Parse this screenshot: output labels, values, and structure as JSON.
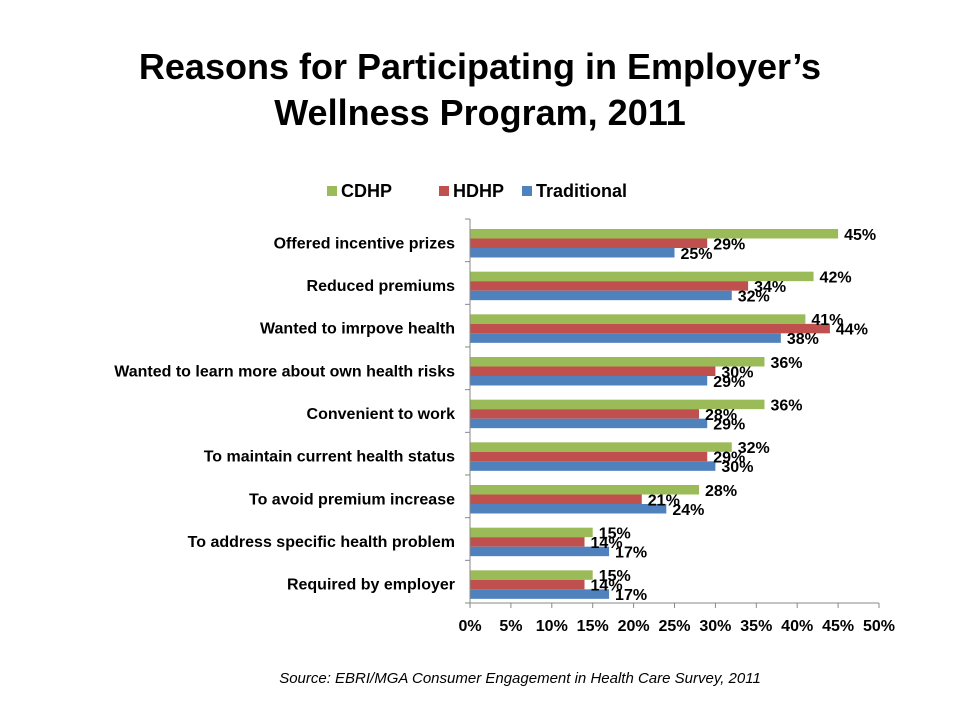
{
  "title_line1": "Reasons for Participating in Employer’s",
  "title_line2": "Wellness Program, 2011",
  "source": "Source: EBRI/MGA Consumer Engagement in Health Care Survey, 2011",
  "chart_data": {
    "type": "bar",
    "orientation": "horizontal",
    "title": "Reasons for Participating in Employer’s Wellness Program, 2011",
    "categories": [
      "Offered incentive prizes",
      "Reduced premiums",
      "Wanted to imrpove health",
      "Wanted to learn more about own health risks",
      "Convenient to work",
      "To maintain current health status",
      "To avoid premium increase",
      "To address specific health problem",
      "Required by employer"
    ],
    "series": [
      {
        "name": "CDHP",
        "color": "#9BBB59",
        "values": [
          45,
          42,
          41,
          36,
          36,
          32,
          28,
          15,
          15
        ]
      },
      {
        "name": "HDHP",
        "color": "#C0504D",
        "values": [
          29,
          34,
          44,
          30,
          28,
          29,
          21,
          14,
          14
        ]
      },
      {
        "name": "Traditional",
        "color": "#4F81BD",
        "values": [
          25,
          32,
          38,
          29,
          29,
          30,
          24,
          17,
          17
        ]
      }
    ],
    "xlim": [
      0,
      50
    ],
    "xticks": [
      0,
      5,
      10,
      15,
      20,
      25,
      30,
      35,
      40,
      45,
      50
    ],
    "tick_suffix": "%",
    "legend_position": "top",
    "grid": false
  }
}
